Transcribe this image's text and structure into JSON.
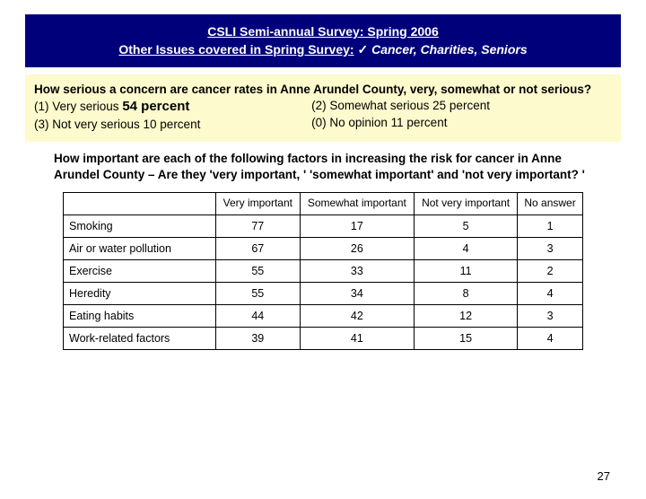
{
  "header": {
    "title": "CSLI Semi-annual Survey: Spring 2006",
    "subtitle_pre": "Other Issues covered in Spring Survey:",
    "check": "✓",
    "subtitle_post": "Cancer, Charities, Seniors",
    "bg_color": "#00007b",
    "text_color": "#ffffff"
  },
  "q1": {
    "question": "How serious a concern are cancer rates in Anne Arundel County, very, somewhat or not serious?",
    "a1_label": "(1) Very serious",
    "a1_value": "54 percent",
    "a2": "(2) Somewhat serious  25 percent",
    "a3": "(3) Not very serious  10 percent",
    "a0": "(0) No opinion 11 percent",
    "bg_color": "#fdfacd"
  },
  "q2": {
    "text": "How important are each of the following factors in increasing the risk for cancer in Anne Arundel County – Are they 'very important, ' 'somewhat important' and 'not very important? '"
  },
  "table": {
    "columns": [
      "",
      "Very important",
      "Somewhat important",
      "Not very important",
      "No answer"
    ],
    "rows": [
      [
        "Smoking",
        "77",
        "17",
        "5",
        "1"
      ],
      [
        "Air or water pollution",
        "67",
        "26",
        "4",
        "3"
      ],
      [
        "Exercise",
        "55",
        "33",
        "11",
        "2"
      ],
      [
        "Heredity",
        "55",
        "34",
        "8",
        "4"
      ],
      [
        "Eating habits",
        "44",
        "42",
        "12",
        "3"
      ],
      [
        "Work-related factors",
        "39",
        "41",
        "15",
        "4"
      ]
    ],
    "border_color": "#000000"
  },
  "page_number": "27"
}
